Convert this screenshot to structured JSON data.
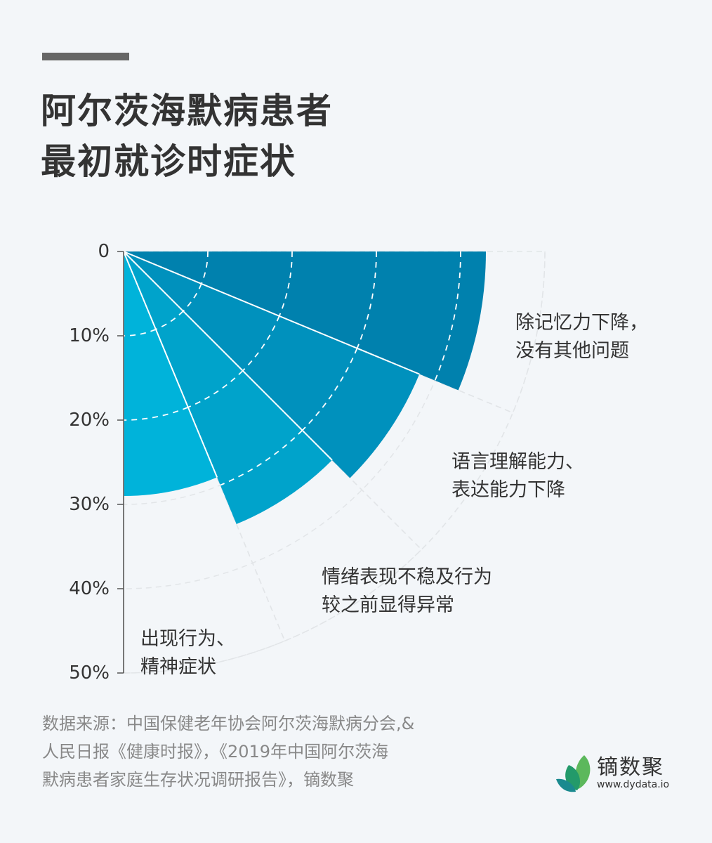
{
  "header": {
    "title_line1": "阿尔茨海默病患者",
    "title_line2": "最初就诊时症状"
  },
  "axis": {
    "ticks": [
      "0",
      "10%",
      "20%",
      "30%",
      "40%",
      "50%"
    ]
  },
  "labels": {
    "cat1_line1": "除记忆力下降，",
    "cat1_line2": "没有其他问题",
    "cat2_line1": "语言理解能力、",
    "cat2_line2": "表达能力下降",
    "cat3_line1": "情绪表现不稳及行为",
    "cat3_line2": "较之前显得异常",
    "cat4_line1": "出现行为、",
    "cat4_line2": "精神症状"
  },
  "footer": {
    "source_line1": "数据来源：中国保健老年协会阿尔茨海默病分会,&",
    "source_line2": "人民日报《健康时报》，《2019年中国阿尔茨海",
    "source_line3": "默病患者家庭生存状况调研报告》，镝数聚",
    "logo_name": "镝数聚",
    "logo_url": "www.dydata.io"
  },
  "colors": {
    "background": "#f3f6f9",
    "sector1": "#0081ae",
    "sector2": "#0091bd",
    "sector3": "#00a3cb",
    "sector4": "#00b3da",
    "grid_light": "#e2e5e8"
  },
  "chart_data": {
    "type": "polar-bar",
    "title": "阿尔茨海默病患者最初就诊时症状",
    "categories": [
      "除记忆力下降，没有其他问题",
      "语言理解能力、表达能力下降",
      "情绪表现不稳及行为较之前显得异常",
      "出现行为、精神症状"
    ],
    "values": [
      43,
      38,
      35,
      29
    ],
    "unit": "%",
    "radial_axis": {
      "ticks": [
        "0",
        "10%",
        "20%",
        "30%",
        "40%",
        "50%"
      ],
      "range": [
        0,
        50
      ]
    },
    "grid": "dashed arcs every 10%",
    "angular_span_degrees": 90,
    "sector_span_degrees": 22.5
  }
}
